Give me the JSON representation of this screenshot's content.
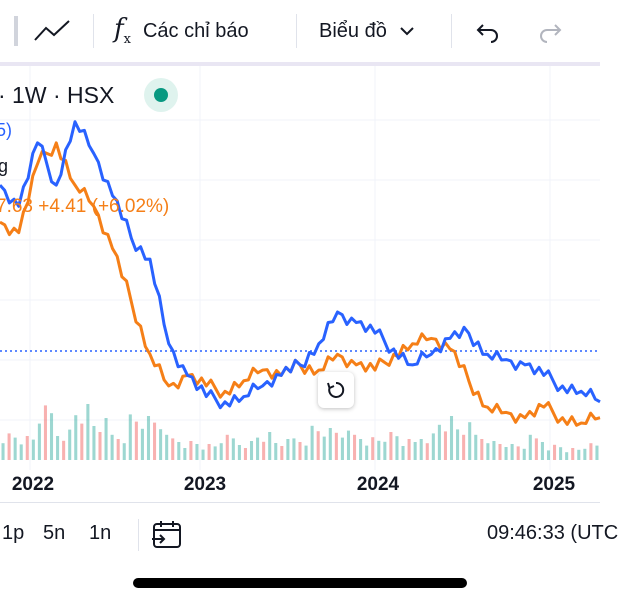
{
  "toolbar": {
    "indicators_label": "Các chỉ báo",
    "chart_menu_label": "Biểu đồ"
  },
  "legend": {
    "symbol_line": "· 1W · HSX",
    "line2": "5)",
    "line3": "g",
    "change_text": "7.63 +4.41 (+6.02%)"
  },
  "colors": {
    "series_blue": "#2962ff",
    "series_orange": "#f57f17",
    "price_line": "#2962ff",
    "volume_up": "#26a69a",
    "volume_down": "#ef5350",
    "status_green": "#089981"
  },
  "chart_data": {
    "type": "line",
    "x_tick_labels": [
      "2022",
      "2023",
      "2024",
      "2025"
    ],
    "series": [
      {
        "color": "blue",
        "values": [
          62,
          58,
          70,
          62,
          74,
          68,
          60,
          52,
          48,
          32,
          26,
          22,
          21,
          22,
          24,
          26,
          28,
          32,
          38,
          36,
          34,
          31,
          28,
          30,
          33,
          34,
          30,
          29,
          28,
          26,
          24,
          23,
          21
        ]
      },
      {
        "color": "orange",
        "values": [
          55,
          53,
          66,
          70,
          62,
          58,
          50,
          40,
          30,
          24,
          26,
          24,
          23,
          25,
          27,
          26,
          28,
          27,
          30,
          28,
          27,
          30,
          32,
          33,
          31,
          25,
          20,
          19,
          18,
          20,
          18,
          17,
          18
        ]
      }
    ],
    "volume": [
      14,
      12,
      26,
      16,
      28,
      20,
      14,
      24,
      22,
      12,
      10,
      8,
      12,
      10,
      14,
      10,
      12,
      18,
      16,
      14,
      12,
      14,
      10,
      14,
      22,
      18,
      14,
      10,
      8,
      12,
      8,
      6,
      8
    ],
    "grid": true,
    "reference_line": true
  },
  "timeframes": [
    "1p",
    "5n",
    "1n"
  ],
  "status": {
    "clock": "09:46:33 (UTC"
  }
}
